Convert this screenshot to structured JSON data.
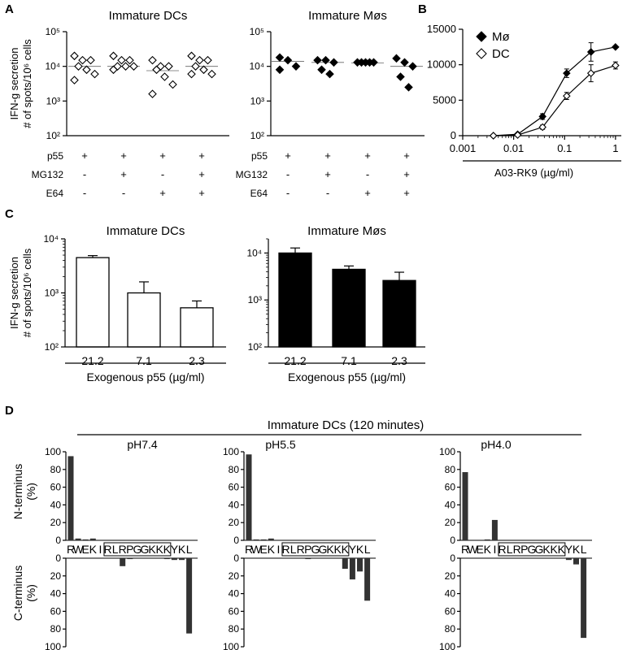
{
  "panel_letters": [
    "A",
    "B",
    "C",
    "D"
  ],
  "chart_data": [
    {
      "id": "A1",
      "type": "scatter",
      "title": "Immature DCs",
      "ylabel_lines": [
        "IFN-g secretion",
        "# of spots/10⁶ cells"
      ],
      "yscale": "log",
      "ylim": [
        100,
        100000
      ],
      "ytick_labels": [
        "10²",
        "10³",
        "10⁴",
        "10⁵"
      ],
      "marker": "open-diamond",
      "row_labels": [
        "p55",
        "MG132",
        "E64"
      ],
      "conditions": [
        [
          "+",
          "-",
          "-"
        ],
        [
          "+",
          "+",
          "-"
        ],
        [
          "+",
          "-",
          "+"
        ],
        [
          "+",
          "+",
          "+"
        ]
      ],
      "groups": [
        {
          "values": [
            20000,
            15000,
            15000,
            10000,
            8000,
            6000,
            4000
          ],
          "mean": 10000
        },
        {
          "values": [
            20000,
            15000,
            15000,
            10000,
            10000,
            10000,
            8000
          ],
          "mean": 10000
        },
        {
          "values": [
            15000,
            10000,
            10000,
            8000,
            5000,
            3000,
            1600
          ],
          "mean": 7500
        },
        {
          "values": [
            20000,
            15000,
            15000,
            10000,
            8000,
            6000,
            6000
          ],
          "mean": 10000
        }
      ]
    },
    {
      "id": "A2",
      "type": "scatter",
      "title": "Immature Møs",
      "yscale": "log",
      "ylim": [
        100,
        100000
      ],
      "ytick_labels": [
        "10²",
        "10³",
        "10⁴",
        "10⁵"
      ],
      "marker": "filled-diamond",
      "row_labels": [
        "p55",
        "MG132",
        "E64"
      ],
      "conditions": [
        [
          "+",
          "-",
          "-"
        ],
        [
          "+",
          "+",
          "-"
        ],
        [
          "+",
          "-",
          "+"
        ],
        [
          "+",
          "+",
          "+"
        ]
      ],
      "groups": [
        {
          "values": [
            18000,
            15000,
            10000,
            8000
          ],
          "mean": 14000
        },
        {
          "values": [
            15000,
            15000,
            13000,
            8000,
            6000
          ],
          "mean": 13000
        },
        {
          "values": [
            13000,
            13000,
            13000,
            13000,
            13000
          ],
          "mean": 12500
        },
        {
          "values": [
            17000,
            13000,
            10000,
            5000,
            2500
          ],
          "mean": 10000
        }
      ]
    },
    {
      "id": "B",
      "type": "line",
      "xlabel": "A03-RK9 (µg/ml)",
      "xscale": "log",
      "xlim": [
        0.001,
        1.3
      ],
      "xtick_labels": [
        "0.001",
        "0.01",
        "0.1",
        "1"
      ],
      "ylim": [
        0,
        15000
      ],
      "ytick_labels": [
        "0",
        "5000",
        "10000",
        "15000"
      ],
      "legend_position": "top-left",
      "series": [
        {
          "name": "Mø",
          "marker": "filled-diamond",
          "x": [
            0.004,
            0.012,
            0.037,
            0.11,
            0.33,
            1.0
          ],
          "y": [
            0,
            200,
            2700,
            8800,
            11800,
            12500
          ],
          "err": [
            0,
            100,
            400,
            600,
            1300,
            0
          ]
        },
        {
          "name": "DC",
          "marker": "open-diamond",
          "x": [
            0.004,
            0.012,
            0.037,
            0.11,
            0.33,
            1.0
          ],
          "y": [
            0,
            100,
            1200,
            5600,
            8800,
            9900
          ],
          "err": [
            0,
            100,
            300,
            500,
            1200,
            500
          ]
        }
      ]
    },
    {
      "id": "C1",
      "type": "bar",
      "title": "Immature DCs",
      "ylabel_lines": [
        "IFN-g secretion",
        "# of spots/10⁶ cells"
      ],
      "yscale": "log",
      "ylim": [
        100,
        10000
      ],
      "ytick_labels": [
        "10²",
        "10³",
        "10⁴"
      ],
      "categories": [
        "21.2",
        "7.1",
        "2.3"
      ],
      "values": [
        4500,
        1000,
        530
      ],
      "err": [
        400,
        600,
        180
      ],
      "fill": "#ffffff",
      "xlabel": "Exogenous p55 (µg/ml)"
    },
    {
      "id": "C2",
      "type": "bar",
      "title": "Immature Møs",
      "yscale": "log",
      "ylim": [
        100,
        20000
      ],
      "ytick_labels": [
        "10²",
        "10³",
        "10⁴"
      ],
      "categories": [
        "21.2",
        "7.1",
        "2.3"
      ],
      "values": [
        10000,
        4500,
        2600
      ],
      "err": [
        2800,
        800,
        1300
      ],
      "fill": "#000000",
      "xlabel": "Exogenous p55 (µg/ml)"
    },
    {
      "id": "D",
      "type": "bar",
      "title": "Immature DCs (120 minutes)",
      "ylabel_top": [
        "N-terminus",
        "(%)"
      ],
      "ylabel_bottom": [
        "C-terminus",
        "(%)"
      ],
      "ylim": [
        0,
        100
      ],
      "ytick_labels": [
        "0",
        "20",
        "40",
        "60",
        "80",
        "100"
      ],
      "sequence": [
        "R",
        "W",
        "E",
        "K",
        "I",
        "R",
        "L",
        "R",
        "P",
        "G",
        "G",
        "K",
        "K",
        "K",
        "Y",
        "K",
        "L"
      ],
      "boxed_range": [
        5,
        13
      ],
      "bar_color": "#333333",
      "subpanels": [
        {
          "title": "pH7.4",
          "n_terminus": [
            95,
            2,
            1,
            2,
            0,
            0,
            0,
            0,
            0,
            0,
            0,
            0,
            0,
            0,
            0,
            0,
            0
          ],
          "c_terminus": [
            0,
            0,
            0,
            0,
            0,
            0,
            0,
            9,
            1,
            0,
            0,
            0,
            0,
            1,
            2,
            2,
            85
          ]
        },
        {
          "title": "pH5.5",
          "n_terminus": [
            97,
            1,
            1,
            2,
            0,
            0,
            0,
            0,
            0,
            0,
            0,
            0,
            0,
            0,
            0,
            0,
            0
          ],
          "c_terminus": [
            0,
            0,
            0,
            0,
            0,
            0,
            0,
            0,
            1,
            0,
            0,
            0,
            0,
            12,
            24,
            15,
            48
          ]
        },
        {
          "title": "pH4.0",
          "n_terminus": [
            77,
            0,
            0,
            1,
            23,
            0,
            0,
            0,
            0,
            0,
            0,
            0,
            0,
            0,
            0,
            0,
            0
          ],
          "c_terminus": [
            0,
            0,
            0,
            0,
            0,
            0,
            0,
            0,
            0,
            0,
            0,
            0,
            0,
            0,
            2,
            7,
            90
          ]
        }
      ]
    }
  ]
}
